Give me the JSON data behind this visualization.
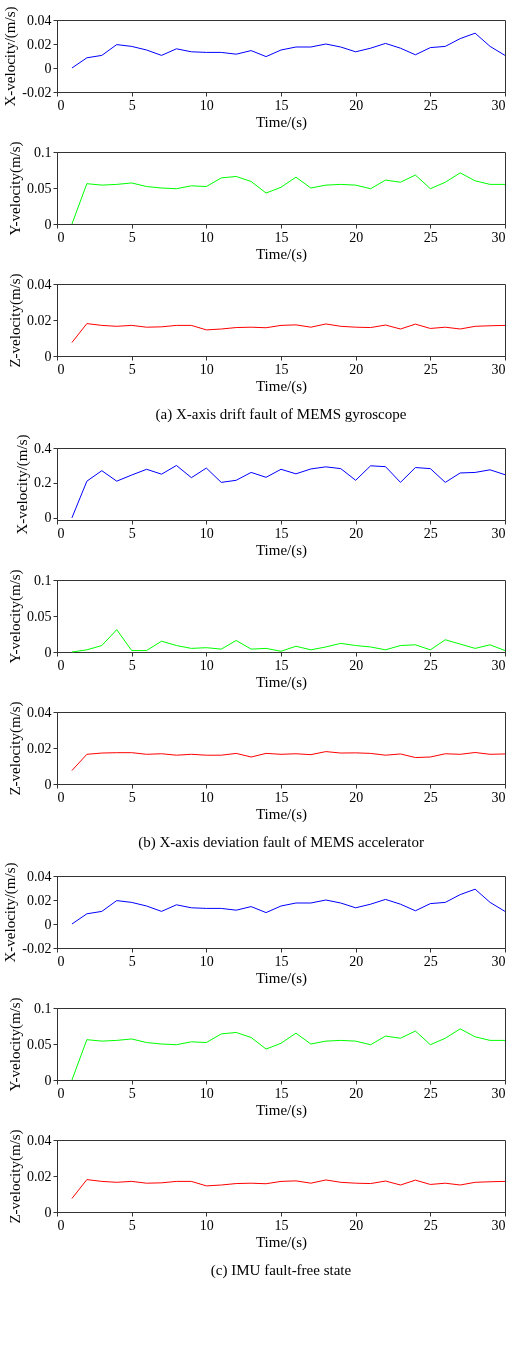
{
  "chart_data": [
    {
      "type": "line",
      "xlabel": "Time/(s)",
      "ylabel": "X-velocity/(m/s)",
      "xlim": [
        0,
        30
      ],
      "xticks": [
        0,
        5,
        10,
        15,
        20,
        25,
        30
      ],
      "ylim": [
        -0.02,
        0.04
      ],
      "yticks": [
        -0.02,
        0,
        0.02,
        0.04
      ],
      "grid": false,
      "x": [
        1,
        2,
        3,
        4,
        5,
        6,
        7,
        8,
        9,
        10,
        11,
        12,
        13,
        14,
        15,
        16,
        17,
        18,
        19,
        20,
        21,
        22,
        23,
        24,
        25,
        26,
        27,
        28,
        29,
        30
      ],
      "series": [
        {
          "color": "#0000ff",
          "values": [
            0,
            0.0085,
            0.0105,
            0.0195,
            0.018,
            0.015,
            0.0105,
            0.016,
            0.0135,
            0.013,
            0.013,
            0.0115,
            0.0145,
            0.0095,
            0.015,
            0.0175,
            0.0175,
            0.02,
            0.0175,
            0.0135,
            0.0165,
            0.0205,
            0.0165,
            0.011,
            0.017,
            0.018,
            0.0245,
            0.029,
            0.018,
            0.0105
          ]
        }
      ]
    },
    {
      "type": "line",
      "xlabel": "Time/(s)",
      "ylabel": "Y-velocity(m/s)",
      "xlim": [
        0,
        30
      ],
      "xticks": [
        0,
        5,
        10,
        15,
        20,
        25,
        30
      ],
      "ylim": [
        0,
        0.1
      ],
      "yticks": [
        0,
        0.05,
        0.1
      ],
      "grid": false,
      "x": [
        1,
        2,
        3,
        4,
        5,
        6,
        7,
        8,
        9,
        10,
        11,
        12,
        13,
        14,
        15,
        16,
        17,
        18,
        19,
        20,
        21,
        22,
        23,
        24,
        25,
        26,
        27,
        28,
        29,
        30
      ],
      "series": [
        {
          "color": "#00ff00",
          "values": [
            0,
            0.056,
            0.054,
            0.055,
            0.057,
            0.052,
            0.05,
            0.049,
            0.053,
            0.052,
            0.064,
            0.066,
            0.059,
            0.043,
            0.051,
            0.065,
            0.05,
            0.054,
            0.055,
            0.054,
            0.049,
            0.061,
            0.058,
            0.068,
            0.049,
            0.058,
            0.071,
            0.06,
            0.055,
            0.055
          ]
        }
      ]
    },
    {
      "type": "line",
      "xlabel": "Time/(s)",
      "ylabel": "Z-velocity(m/s)",
      "xlim": [
        0,
        30
      ],
      "xticks": [
        0,
        5,
        10,
        15,
        20,
        25,
        30
      ],
      "ylim": [
        0,
        0.04
      ],
      "yticks": [
        0,
        0.02,
        0.04
      ],
      "grid": false,
      "annotations": [
        "(a)  X-axis drift fault of MEMS gyroscope"
      ],
      "x": [
        1,
        2,
        3,
        4,
        5,
        6,
        7,
        8,
        9,
        10,
        11,
        12,
        13,
        14,
        15,
        16,
        17,
        18,
        19,
        20,
        21,
        22,
        23,
        24,
        25,
        26,
        27,
        28,
        29,
        30
      ],
      "series": [
        {
          "color": "#ff0000",
          "values": [
            0.0075,
            0.018,
            0.017,
            0.0165,
            0.017,
            0.016,
            0.0162,
            0.017,
            0.017,
            0.0145,
            0.015,
            0.0158,
            0.016,
            0.0157,
            0.017,
            0.0173,
            0.016,
            0.0178,
            0.0165,
            0.016,
            0.0158,
            0.0172,
            0.015,
            0.0177,
            0.0153,
            0.016,
            0.015,
            0.0165,
            0.0168,
            0.017
          ]
        }
      ]
    },
    {
      "type": "line",
      "xlabel": "Time/(s)",
      "ylabel": "X-velocity/(m/s)",
      "xlim": [
        0,
        30
      ],
      "xticks": [
        0,
        5,
        10,
        15,
        20,
        25,
        30
      ],
      "ylim": [
        -0.0125,
        0.4
      ],
      "yticks": [
        0,
        0.2,
        0.4
      ],
      "grid": false,
      "x": [
        1,
        2,
        3,
        4,
        5,
        6,
        7,
        8,
        9,
        10,
        11,
        12,
        13,
        14,
        15,
        16,
        17,
        18,
        19,
        20,
        21,
        22,
        23,
        24,
        25,
        26,
        27,
        28,
        29,
        30
      ],
      "series": [
        {
          "color": "#0000ff",
          "values": [
            0,
            0.21,
            0.27,
            0.21,
            0.245,
            0.278,
            0.25,
            0.3,
            0.23,
            0.285,
            0.203,
            0.215,
            0.26,
            0.232,
            0.278,
            0.252,
            0.28,
            0.292,
            0.282,
            0.215,
            0.298,
            0.293,
            0.203,
            0.288,
            0.282,
            0.203,
            0.257,
            0.26,
            0.275,
            0.247
          ]
        }
      ]
    },
    {
      "type": "line",
      "xlabel": "Time/(s)",
      "ylabel": "Y-velocity(m/s)",
      "xlim": [
        0,
        30
      ],
      "xticks": [
        0,
        5,
        10,
        15,
        20,
        25,
        30
      ],
      "ylim": [
        0,
        0.1
      ],
      "yticks": [
        0,
        0.05,
        0.1
      ],
      "grid": false,
      "x": [
        1,
        2,
        3,
        4,
        5,
        6,
        7,
        8,
        9,
        10,
        11,
        12,
        13,
        14,
        15,
        16,
        17,
        18,
        19,
        20,
        21,
        22,
        23,
        24,
        25,
        26,
        27,
        28,
        29,
        30
      ],
      "series": [
        {
          "color": "#00ff00",
          "values": [
            0,
            0.003,
            0.009,
            0.031,
            0.002,
            0.002,
            0.015,
            0.009,
            0.005,
            0.006,
            0.004,
            0.016,
            0.004,
            0.005,
            0.001,
            0.008,
            0.003,
            0.007,
            0.012,
            0.009,
            0.007,
            0.003,
            0.009,
            0.01,
            0.003,
            0.017,
            0.011,
            0.005,
            0.01,
            0.002
          ]
        }
      ]
    },
    {
      "type": "line",
      "xlabel": "Time/(s)",
      "ylabel": "Z-velocity(m/s)",
      "xlim": [
        0,
        30
      ],
      "xticks": [
        0,
        5,
        10,
        15,
        20,
        25,
        30
      ],
      "ylim": [
        0,
        0.04
      ],
      "yticks": [
        0,
        0.02,
        0.04
      ],
      "grid": false,
      "annotations": [
        "(b)  X-axis deviation fault of MEMS accelerator"
      ],
      "x": [
        1,
        2,
        3,
        4,
        5,
        6,
        7,
        8,
        9,
        10,
        11,
        12,
        13,
        14,
        15,
        16,
        17,
        18,
        19,
        20,
        21,
        22,
        23,
        24,
        25,
        26,
        27,
        28,
        29,
        30
      ],
      "series": [
        {
          "color": "#ff0000",
          "values": [
            0.0075,
            0.0165,
            0.0172,
            0.0174,
            0.0174,
            0.0165,
            0.0168,
            0.016,
            0.0165,
            0.016,
            0.016,
            0.017,
            0.015,
            0.017,
            0.0165,
            0.0168,
            0.0163,
            0.018,
            0.0172,
            0.0173,
            0.017,
            0.016,
            0.0167,
            0.0147,
            0.015,
            0.0168,
            0.0165,
            0.0175,
            0.0165,
            0.0167
          ]
        }
      ]
    },
    {
      "type": "line",
      "xlabel": "Time/(s)",
      "ylabel": "X-velocity/(m/s)",
      "xlim": [
        0,
        30
      ],
      "xticks": [
        0,
        5,
        10,
        15,
        20,
        25,
        30
      ],
      "ylim": [
        -0.02,
        0.04
      ],
      "yticks": [
        -0.02,
        0,
        0.02,
        0.04
      ],
      "grid": false,
      "x": [
        1,
        2,
        3,
        4,
        5,
        6,
        7,
        8,
        9,
        10,
        11,
        12,
        13,
        14,
        15,
        16,
        17,
        18,
        19,
        20,
        21,
        22,
        23,
        24,
        25,
        26,
        27,
        28,
        29,
        30
      ],
      "series": [
        {
          "color": "#0000ff",
          "values": [
            0,
            0.0085,
            0.0105,
            0.0195,
            0.018,
            0.015,
            0.0105,
            0.016,
            0.0135,
            0.013,
            0.013,
            0.0115,
            0.0145,
            0.0095,
            0.015,
            0.0175,
            0.0175,
            0.02,
            0.0175,
            0.0135,
            0.0165,
            0.0205,
            0.0165,
            0.011,
            0.017,
            0.018,
            0.0245,
            0.029,
            0.018,
            0.0105
          ]
        }
      ]
    },
    {
      "type": "line",
      "xlabel": "Time/(s)",
      "ylabel": "Y-velocity(m/s)",
      "xlim": [
        0,
        30
      ],
      "xticks": [
        0,
        5,
        10,
        15,
        20,
        25,
        30
      ],
      "ylim": [
        0,
        0.1
      ],
      "yticks": [
        0,
        0.05,
        0.1
      ],
      "grid": false,
      "x": [
        1,
        2,
        3,
        4,
        5,
        6,
        7,
        8,
        9,
        10,
        11,
        12,
        13,
        14,
        15,
        16,
        17,
        18,
        19,
        20,
        21,
        22,
        23,
        24,
        25,
        26,
        27,
        28,
        29,
        30
      ],
      "series": [
        {
          "color": "#00ff00",
          "values": [
            0,
            0.056,
            0.054,
            0.055,
            0.057,
            0.052,
            0.05,
            0.049,
            0.053,
            0.052,
            0.064,
            0.066,
            0.059,
            0.043,
            0.051,
            0.065,
            0.05,
            0.054,
            0.055,
            0.054,
            0.049,
            0.061,
            0.058,
            0.068,
            0.049,
            0.058,
            0.071,
            0.06,
            0.055,
            0.055
          ]
        }
      ]
    },
    {
      "type": "line",
      "xlabel": "Time/(s)",
      "ylabel": "Z-velocity(m/s)",
      "xlim": [
        0,
        30
      ],
      "xticks": [
        0,
        5,
        10,
        15,
        20,
        25,
        30
      ],
      "ylim": [
        0,
        0.04
      ],
      "yticks": [
        0,
        0.02,
        0.04
      ],
      "grid": false,
      "annotations": [
        "(c)  IMU fault-free state"
      ],
      "x": [
        1,
        2,
        3,
        4,
        5,
        6,
        7,
        8,
        9,
        10,
        11,
        12,
        13,
        14,
        15,
        16,
        17,
        18,
        19,
        20,
        21,
        22,
        23,
        24,
        25,
        26,
        27,
        28,
        29,
        30
      ],
      "series": [
        {
          "color": "#ff0000",
          "values": [
            0.0075,
            0.018,
            0.017,
            0.0165,
            0.017,
            0.016,
            0.0162,
            0.017,
            0.017,
            0.0145,
            0.015,
            0.0158,
            0.016,
            0.0157,
            0.017,
            0.0173,
            0.016,
            0.0178,
            0.0165,
            0.016,
            0.0158,
            0.0172,
            0.015,
            0.0177,
            0.0153,
            0.016,
            0.015,
            0.0165,
            0.0168,
            0.017
          ]
        }
      ]
    }
  ]
}
